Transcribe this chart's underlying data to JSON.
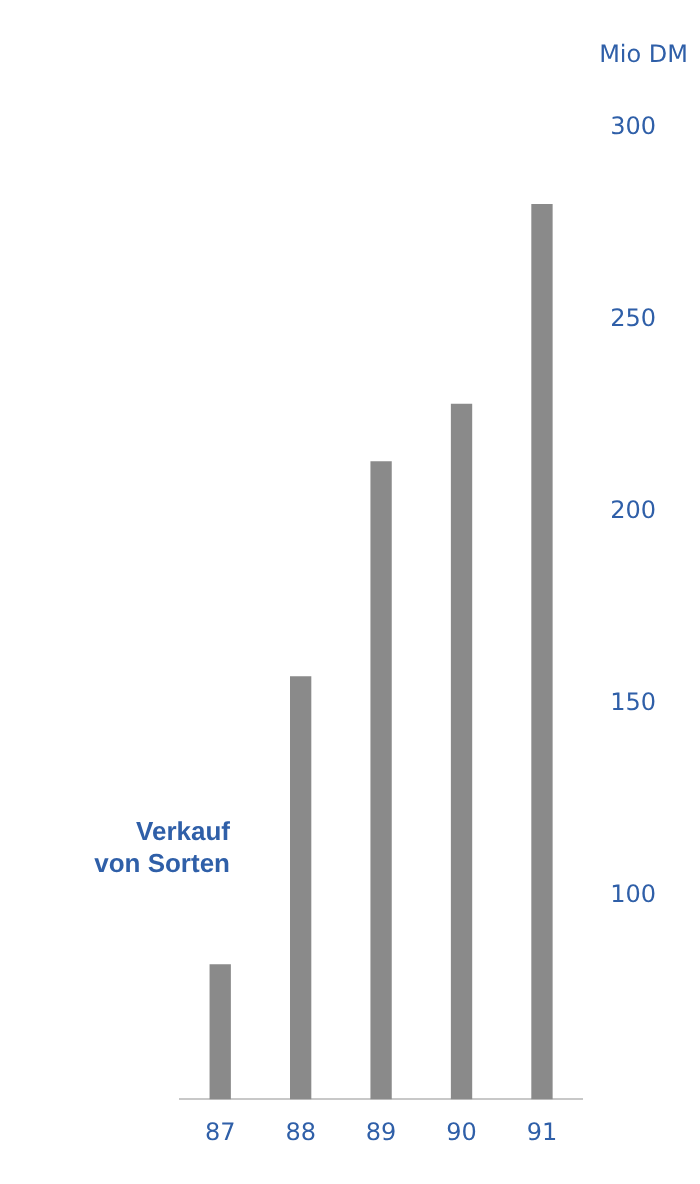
{
  "chart_data": {
    "type": "bar",
    "title": "Verkauf von Sorten",
    "ylabel": "Mio DM",
    "categories": [
      "87",
      "88",
      "89",
      "90",
      "91"
    ],
    "values": [
      82,
      157,
      213,
      228,
      280
    ],
    "color": "#8a8a8a",
    "ylim": [
      47,
      300
    ],
    "yticks": [
      100,
      150,
      200,
      250,
      300
    ]
  }
}
